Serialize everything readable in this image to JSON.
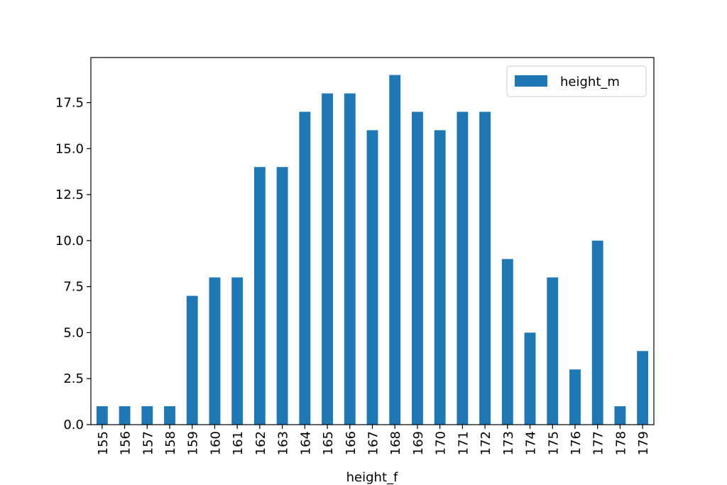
{
  "chart_data": {
    "type": "bar",
    "xlabel": "height_f",
    "categories": [
      "155",
      "156",
      "157",
      "158",
      "159",
      "160",
      "161",
      "162",
      "163",
      "164",
      "165",
      "166",
      "167",
      "168",
      "169",
      "170",
      "171",
      "172",
      "173",
      "174",
      "175",
      "176",
      "177",
      "178",
      "179"
    ],
    "series": [
      {
        "name": "height_m",
        "color": "#1f77b4",
        "values": [
          1,
          1,
          1,
          1,
          7,
          8,
          8,
          14,
          14,
          17,
          18,
          18,
          16,
          19,
          17,
          16,
          17,
          17,
          9,
          5,
          8,
          3,
          10,
          1,
          4
        ]
      }
    ],
    "ylim": [
      0,
      19.95
    ],
    "yticks": [
      {
        "value": 0,
        "label": "0.0"
      },
      {
        "value": 2.5,
        "label": "2.5"
      },
      {
        "value": 5,
        "label": "5.0"
      },
      {
        "value": 7.5,
        "label": "7.5"
      },
      {
        "value": 10,
        "label": "10.0"
      },
      {
        "value": 12.5,
        "label": "12.5"
      },
      {
        "value": 15,
        "label": "15.0"
      },
      {
        "value": 17.5,
        "label": "17.5"
      }
    ],
    "legend": "upper right"
  }
}
